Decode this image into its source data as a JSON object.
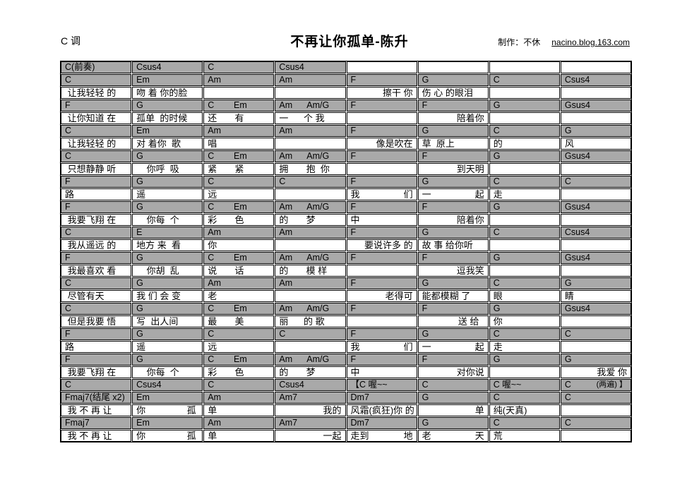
{
  "header": {
    "key": "C 调",
    "title": "不再让你孤单-陈升",
    "credit_label": "制作：不休",
    "credit_link": "nacino.blog.163.com"
  },
  "colors": {
    "chord_row_bg": "#a9a9a9",
    "lyric_row_bg": "#ffffff",
    "border": "#000000",
    "text": "#000000"
  },
  "table": {
    "columns": 8,
    "rows": [
      {
        "type": "chord",
        "cells": [
          "C(前奏)",
          "Csus4",
          "C",
          "Csus4",
          {
            "t": "",
            "bg": "white"
          },
          {
            "t": "",
            "bg": "white"
          },
          {
            "t": "",
            "bg": "white"
          },
          {
            "t": "",
            "bg": "white"
          }
        ]
      },
      {
        "type": "chord",
        "cells": [
          "C",
          "Em",
          "Am",
          "Am",
          "F",
          "G",
          "C",
          "Csus4"
        ]
      },
      {
        "type": "lyric",
        "cells": [
          " 让我轻轻 的",
          "吻 着 你的脸",
          "",
          "",
          {
            "t": "擦干 你",
            "a": "r"
          },
          "伤 心 的眼泪",
          "",
          ""
        ]
      },
      {
        "type": "chord",
        "cells": [
          "F",
          "G",
          "C        Em",
          "Am      Am/G",
          "F",
          "F",
          "G",
          "Gsus4"
        ]
      },
      {
        "type": "lyric",
        "cells": [
          " 让你知道 在",
          "孤单  的时候",
          "还       有",
          "一      个 我",
          "",
          {
            "t": "陪着你",
            "a": "r"
          },
          "",
          ""
        ]
      },
      {
        "type": "chord",
        "cells": [
          "C",
          "Em",
          "Am",
          "Am",
          "F",
          "G",
          "C",
          "G"
        ]
      },
      {
        "type": "lyric",
        "cells": [
          " 让我轻轻 的",
          "对 着你  歌",
          "唱",
          "",
          {
            "t": "像是吹在",
            "a": "r"
          },
          "草  原上",
          "的",
          "风"
        ]
      },
      {
        "type": "chord",
        "cells": [
          "C",
          "G",
          "C        Em",
          "Am      Am/G",
          "F",
          "F",
          "G",
          "Gsus4"
        ]
      },
      {
        "type": "lyric",
        "cells": [
          " 只想静静 听",
          "    你呼  吸",
          "紧       紧",
          "拥       抱  你",
          "",
          {
            "t": "到天明",
            "a": "r"
          },
          "",
          ""
        ]
      },
      {
        "type": "chord",
        "cells": [
          "F",
          "G",
          "C",
          "C",
          "F",
          "G",
          "C",
          "C"
        ]
      },
      {
        "type": "lyric",
        "cells": [
          "路",
          "遥",
          "远",
          "",
          {
            "l": "我",
            "r": "们"
          },
          {
            "l": "一",
            "r": "起"
          },
          "走",
          ""
        ]
      },
      {
        "type": "chord",
        "cells": [
          "F",
          "G",
          "C        Em",
          "Am      Am/G",
          "F",
          "F",
          "G",
          "Gsus4"
        ]
      },
      {
        "type": "lyric",
        "cells": [
          " 我要飞翔 在",
          "    你每  个",
          "彩       色",
          "的       梦",
          "中",
          {
            "t": "陪着你",
            "a": "r"
          },
          "",
          ""
        ]
      },
      {
        "type": "chord",
        "cells": [
          "C",
          "E",
          "Am",
          "Am",
          "F",
          "G",
          "C",
          "Csus4"
        ]
      },
      {
        "type": "lyric",
        "cells": [
          " 我从遥远 的",
          "地方 来  看",
          "你",
          "",
          {
            "t": "要说许多 的",
            "a": "r"
          },
          "故 事 给你听",
          "",
          ""
        ]
      },
      {
        "type": "chord",
        "cells": [
          "F",
          "G",
          "C        Em",
          "Am      Am/G",
          "F",
          "F",
          "G",
          "Gsus4"
        ]
      },
      {
        "type": "lyric",
        "cells": [
          " 我最喜欢 看",
          "    你胡  乱",
          "说       话",
          "的       模 样",
          "",
          {
            "t": "逗我笑",
            "a": "r"
          },
          "",
          ""
        ]
      },
      {
        "type": "chord",
        "cells": [
          "C",
          "G",
          "Am",
          "Am",
          "F",
          "G",
          "C",
          "G"
        ]
      },
      {
        "type": "lyric",
        "cells": [
          " 尽管有天",
          "我 们 会 变",
          "老",
          "",
          {
            "t": "老得可",
            "a": "r"
          },
          "能都模糊 了",
          "眼",
          "睛"
        ]
      },
      {
        "type": "chord",
        "cells": [
          "C",
          "G",
          "C        Em",
          "Am      Am/G",
          "F",
          "F",
          "G",
          "Gsus4"
        ]
      },
      {
        "type": "lyric",
        "cells": [
          " 但是我要 悟",
          "写  出人间",
          "最       美",
          "丽      的 歌",
          "",
          {
            "t": "送 给  ",
            "a": "r"
          },
          "你",
          ""
        ]
      },
      {
        "type": "chord",
        "cells": [
          "F",
          "G",
          "C",
          "C",
          "F",
          "G",
          "C",
          "C"
        ]
      },
      {
        "type": "lyric",
        "cells": [
          "路",
          "遥",
          "远",
          "",
          {
            "l": "我",
            "r": "们"
          },
          {
            "l": "一",
            "r": "起"
          },
          "走",
          ""
        ]
      },
      {
        "type": "chord",
        "cells": [
          "F",
          "G",
          "C        Em",
          "Am      Am/G",
          "F",
          "F",
          "G",
          "G"
        ]
      },
      {
        "type": "lyric",
        "cells": [
          " 我要飞翔 在",
          "    你每  个",
          "彩       色",
          "的       梦",
          "中",
          {
            "t": "对你说",
            "a": "r"
          },
          "",
          {
            "t": "我爱 你",
            "a": "r"
          }
        ]
      },
      {
        "type": "chord",
        "cells": [
          "C",
          "Csus4",
          "C",
          "Csus4",
          "【C 喔~~",
          "C",
          "C 喔~~",
          {
            "l": "C",
            "r": "(两遍) 】",
            "small_r": true
          }
        ]
      },
      {
        "type": "chord",
        "cells": [
          "Fmaj7(结尾 x2)",
          "Em",
          "Am",
          "Am7",
          "Dm7",
          "G",
          "C",
          "C"
        ]
      },
      {
        "type": "lyric",
        "cells": [
          " 我 不 再 让",
          {
            "l": "你",
            "r": "孤 "
          },
          "单",
          {
            "t": "我的",
            "a": "r"
          },
          "风霜(疯狂)你 的",
          {
            "t": "单",
            "a": "r"
          },
          "纯(天真)",
          ""
        ]
      },
      {
        "type": "chord",
        "cells": [
          "Fmaj7",
          "Em",
          "Am",
          "Am7",
          "Dm7",
          "G",
          "C",
          "C"
        ]
      },
      {
        "type": "lyric",
        "cells": [
          " 我 不 再 让",
          {
            "l": "你",
            "r": "孤 "
          },
          "单",
          {
            "t": "一起",
            "a": "r"
          },
          {
            "l": "走到",
            "r": "地"
          },
          {
            "l": "老",
            "r": "天"
          },
          "荒",
          ""
        ]
      }
    ]
  }
}
